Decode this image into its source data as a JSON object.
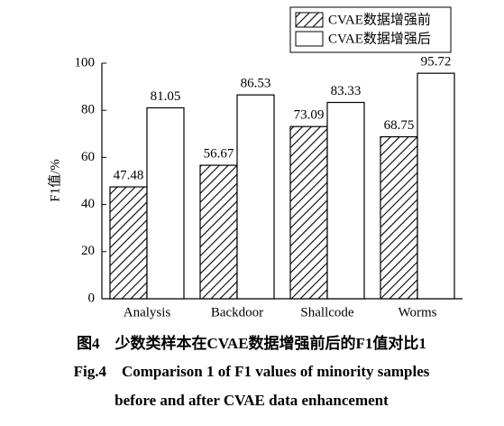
{
  "chart_data": {
    "type": "bar",
    "ylabel": "F1值/%",
    "categories": [
      "Analysis",
      "Backdoor",
      "Shallcode",
      "Worms"
    ],
    "series": [
      {
        "name": "CVAE数据增强前",
        "color": "#ffffff",
        "hatch": true,
        "values": [
          47.48,
          56.67,
          73.09,
          68.75
        ]
      },
      {
        "name": "CVAE数据增强后",
        "color": "#ffffff",
        "hatch": false,
        "values": [
          81.05,
          86.53,
          83.33,
          95.72
        ]
      }
    ],
    "ylim": [
      0,
      100
    ],
    "yticks": [
      0,
      20,
      40,
      60,
      80,
      100
    ],
    "grid": false,
    "legend": "upper right",
    "caption": [
      "图4　少数类样本在CVAE数据增强前后的F1值对比1",
      "Fig.4　Comparison 1 of F1 values of minority samples",
      "before and after CVAE data enhancement"
    ]
  }
}
